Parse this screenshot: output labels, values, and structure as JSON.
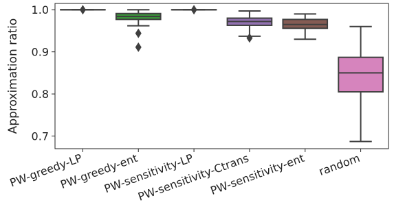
{
  "chart_data": {
    "type": "box",
    "title": "",
    "xlabel": "",
    "ylabel": "Approximation ratio",
    "ylim": [
      0.67,
      1.015
    ],
    "yticks": [
      0.7,
      0.8,
      0.9,
      1.0
    ],
    "ytick_labels": [
      "0.7",
      "0.8",
      "0.9",
      "1.0"
    ],
    "grid": false,
    "categories": [
      "PW-greedy-LP",
      "PW-greedy-ent",
      "PW-sensitivity-LP",
      "PW-sensitivity-Ctrans",
      "PW-sensitivity-ent",
      "random"
    ],
    "boxes": [
      {
        "name": "PW-greedy-LP",
        "color": "#3d6fb6",
        "whislo": 1.0,
        "q1": 1.0,
        "med": 1.0,
        "q3": 1.0,
        "whishi": 1.0,
        "fliers": [
          1.0
        ]
      },
      {
        "name": "PW-greedy-ent",
        "color": "#3a923a",
        "whislo": 0.962,
        "q1": 0.977,
        "med": 0.984,
        "q3": 0.991,
        "whishi": 1.0,
        "fliers": [
          0.944,
          0.911
        ]
      },
      {
        "name": "PW-sensitivity-LP",
        "color": "#c03d3e",
        "whislo": 1.0,
        "q1": 1.0,
        "med": 1.0,
        "q3": 1.0,
        "whishi": 1.0,
        "fliers": [
          1.0
        ]
      },
      {
        "name": "PW-sensitivity-Ctrans",
        "color": "#9372b2",
        "whislo": 0.937,
        "q1": 0.963,
        "med": 0.972,
        "q3": 0.98,
        "whishi": 0.997,
        "fliers": [
          0.933
        ]
      },
      {
        "name": "PW-sensitivity-ent",
        "color": "#845b53",
        "whislo": 0.93,
        "q1": 0.956,
        "med": 0.965,
        "q3": 0.977,
        "whishi": 0.99,
        "fliers": []
      },
      {
        "name": "random",
        "color": "#d684bd",
        "whislo": 0.687,
        "q1": 0.805,
        "med": 0.85,
        "q3": 0.887,
        "whishi": 0.96,
        "fliers": []
      }
    ]
  }
}
